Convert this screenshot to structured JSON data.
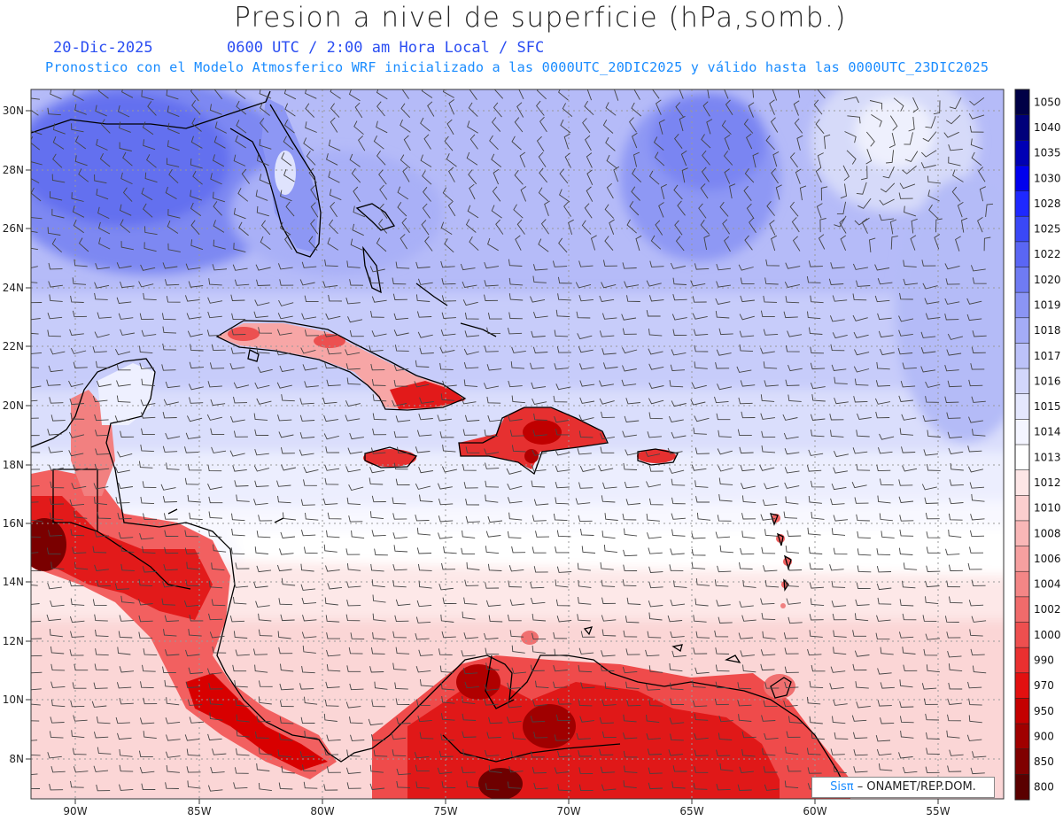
{
  "title": "Presion a nivel de superficie (hPa,somb.)",
  "date": "20-Dic-2025",
  "time_label": "0600 UTC / 2:00 am Hora Local / SFC",
  "model_info": "Pronostico con el Modelo Atmosferico WRF inicializado a las 0000UTC_20DIC2025 y válido hasta las  0000UTC_23DIC2025",
  "credit": {
    "brand": "Sisπ",
    "org": "– ONAMET/REP.DOM."
  },
  "lat_labels": [
    "30N",
    "28N",
    "26N",
    "24N",
    "22N",
    "20N",
    "18N",
    "16N",
    "14N",
    "12N",
    "10N",
    "8N"
  ],
  "lon_labels": [
    "90W",
    "85W",
    "80W",
    "75W",
    "70W",
    "65W",
    "60W",
    "55W"
  ],
  "colorbar": {
    "labels": [
      "1050",
      "1040",
      "1035",
      "1030",
      "1028",
      "1025",
      "1022",
      "1020",
      "1019",
      "1018",
      "1017",
      "1016",
      "1015",
      "1014",
      "1013",
      "1012",
      "1010",
      "1008",
      "1006",
      "1004",
      "1002",
      "1000",
      "990",
      "970",
      "950",
      "900",
      "850",
      "800"
    ],
    "colors": [
      "#000046",
      "#00007a",
      "#0000b4",
      "#0000ee",
      "#1e28ff",
      "#3a48f7",
      "#5a66f4",
      "#6f7bf3",
      "#8b95f5",
      "#a4acf7",
      "#bcc2f9",
      "#d2d6fb",
      "#e4e7fd",
      "#f4f5ff",
      "#ffffff",
      "#fde6e6",
      "#fbcfcf",
      "#f9b7b7",
      "#f6a0a0",
      "#f38686",
      "#f06b6b",
      "#ee4f4f",
      "#ea3030",
      "#e21010",
      "#c40000",
      "#a00000",
      "#800000",
      "#5a0000"
    ]
  }
}
